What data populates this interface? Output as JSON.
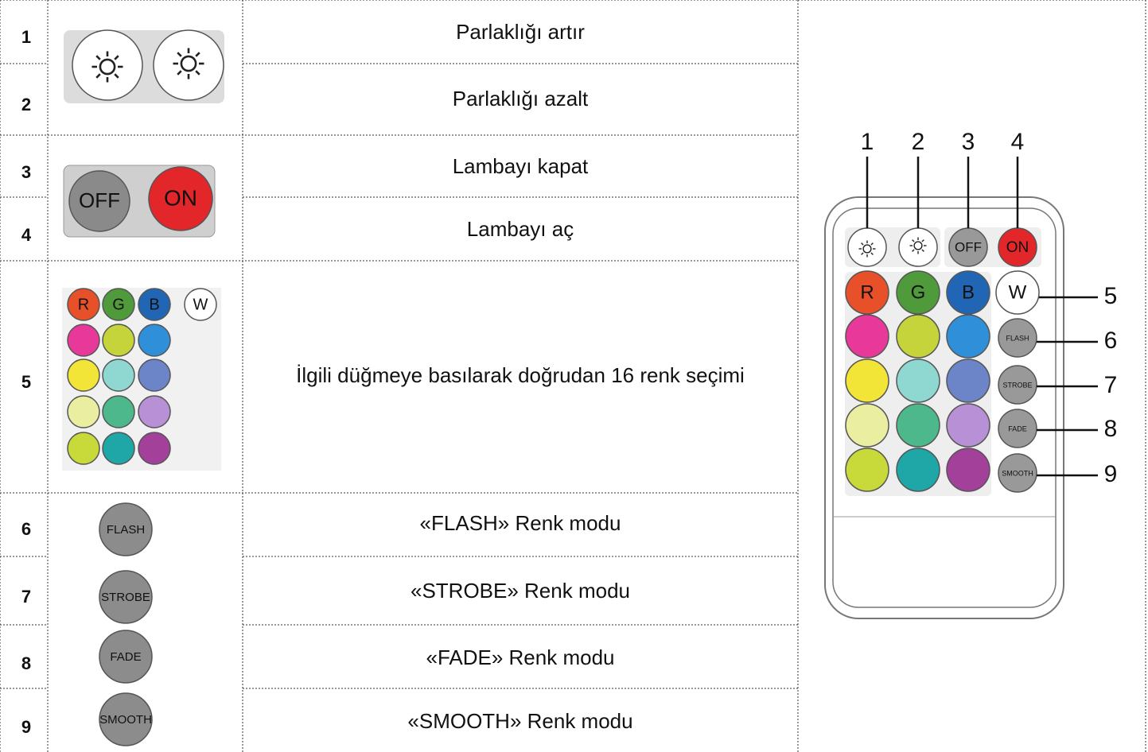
{
  "table": {
    "rows": [
      {
        "number": "1",
        "description": "Parlaklığı artır"
      },
      {
        "number": "2",
        "description": "Parlaklığı azalt"
      },
      {
        "number": "3",
        "description": "Lambayı kapat"
      },
      {
        "number": "4",
        "description": "Lambayı aç"
      },
      {
        "number": "5",
        "description": "İlgili düğmeye basılarak doğrudan 16 renk seçimi"
      },
      {
        "number": "6",
        "description": "«FLASH» Renk modu"
      },
      {
        "number": "7",
        "description": "«STROBE» Renk modu"
      },
      {
        "number": "8",
        "description": "«FADE» Renk modu"
      },
      {
        "number": "9",
        "description": "«SMOOTH» Renk modu"
      }
    ]
  },
  "icons": {
    "off": "OFF",
    "on": "ON",
    "rgbw": [
      "R",
      "G",
      "B",
      "W"
    ],
    "modes": [
      "FLASH",
      "STROBE",
      "FADE",
      "SMOOTH"
    ]
  },
  "remote": {
    "callouts": [
      "1",
      "2",
      "3",
      "4",
      "5",
      "6",
      "7",
      "8",
      "9"
    ]
  }
}
